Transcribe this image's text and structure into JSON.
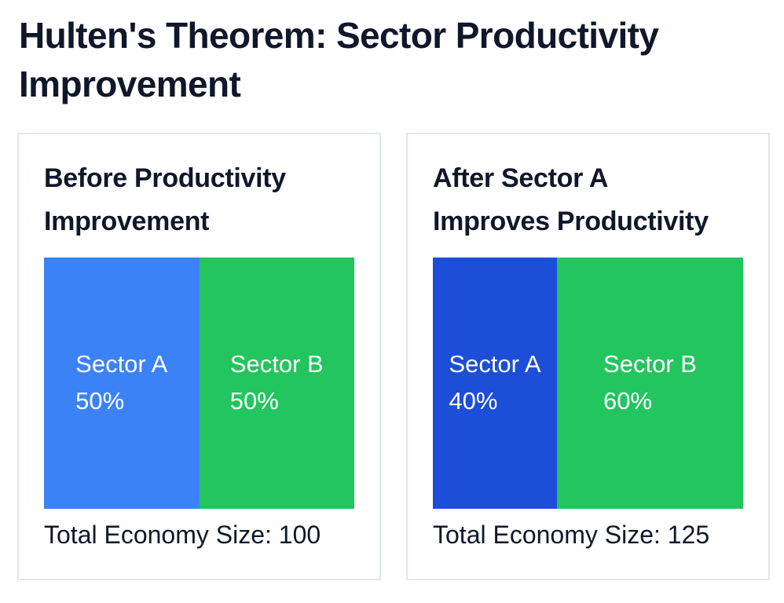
{
  "page_title": "Hulten's Theorem: Sector Productivity Improvement",
  "title_lines": [
    "Hulten's Theorem: Sector Productivity",
    "Improvement"
  ],
  "colors": {
    "sector_a_before": "#3b82f6",
    "sector_a_after": "#1d4ed8",
    "sector_b": "#22c55e",
    "panel_border": "#e2e8f0",
    "text_dark": "#0f172a",
    "label_text": "#ffffff"
  },
  "panels": [
    {
      "title": "Before Productivity Improvement",
      "title_lines": [
        "Before Productivity",
        "Improvement"
      ],
      "total_label": "Total Economy Size: 100",
      "sectors": [
        {
          "name": "Sector A",
          "share": "50%"
        },
        {
          "name": "Sector B",
          "share": "50%"
        }
      ]
    },
    {
      "title": "After Sector A Improves Productivity",
      "title_lines": [
        "After Sector A",
        "Improves Productivity"
      ],
      "total_label": "Total Economy Size: 125",
      "sectors": [
        {
          "name": "Sector A",
          "share": "40%"
        },
        {
          "name": "Sector B",
          "share": "60%"
        }
      ]
    }
  ],
  "chart_data": [
    {
      "type": "bar",
      "subtype": "100pct-stacked-horizontal",
      "title": "Before Productivity Improvement",
      "categories": [
        "Sector A",
        "Sector B"
      ],
      "values": [
        50,
        50
      ],
      "unit": "%",
      "total_economy_size": 100,
      "colors": [
        "#3b82f6",
        "#22c55e"
      ],
      "data_labels": [
        "Sector A 50%",
        "Sector B 50%"
      ],
      "footnote": "Total Economy Size: 100",
      "legend": "none",
      "axes": "none"
    },
    {
      "type": "bar",
      "subtype": "100pct-stacked-horizontal",
      "title": "After Sector A Improves Productivity",
      "categories": [
        "Sector A",
        "Sector B"
      ],
      "values": [
        40,
        60
      ],
      "unit": "%",
      "total_economy_size": 125,
      "colors": [
        "#1d4ed8",
        "#22c55e"
      ],
      "data_labels": [
        "Sector A 40%",
        "Sector B 60%"
      ],
      "footnote": "Total Economy Size: 125",
      "legend": "none",
      "axes": "none"
    }
  ]
}
